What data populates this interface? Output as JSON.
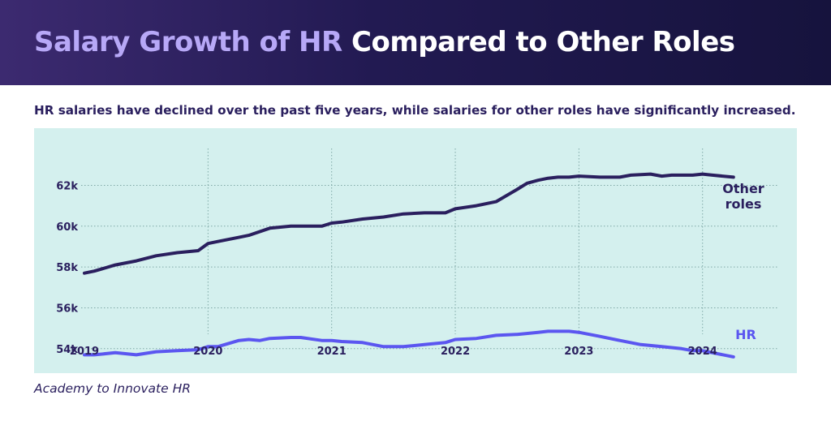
{
  "header": {
    "title_highlight": "Salary Growth of HR",
    "title_rest": " Compared to Other Roles",
    "subtitle": "HR salaries have declined over the past five years, while salaries for other roles have significantly increased."
  },
  "footer": {
    "source": "Academy to Innovate HR"
  },
  "colors": {
    "header_bg": "#221a52",
    "title_highlight": "#b7a8f7",
    "plot_bg": "#d4f0ee",
    "other_roles": "#2a1f5e",
    "hr": "#5b56f0"
  },
  "chart_data": {
    "type": "line",
    "title": "Salary Growth of HR Compared to Other Roles",
    "xlabel": "",
    "ylabel": "",
    "xlim": [
      2019.0,
      2024.33
    ],
    "ylim": [
      52800,
      64800
    ],
    "x_ticks": [
      2019,
      2020,
      2021,
      2022,
      2023,
      2024
    ],
    "x_tick_labels": [
      "2019",
      "2020",
      "2021",
      "2022",
      "2023",
      "2024"
    ],
    "y_ticks": [
      54000,
      56000,
      58000,
      60000,
      62000
    ],
    "y_tick_labels": [
      "54k",
      "56k",
      "58k",
      "60k",
      "62k"
    ],
    "grid": true,
    "series": [
      {
        "name": "Other roles",
        "label_lines": [
          "Other",
          "roles"
        ],
        "color": "#2a1f5e",
        "x": [
          2019.0,
          2019.08,
          2019.25,
          2019.42,
          2019.58,
          2019.75,
          2019.92,
          2020.0,
          2020.08,
          2020.25,
          2020.33,
          2020.5,
          2020.67,
          2020.75,
          2020.92,
          2021.0,
          2021.08,
          2021.25,
          2021.42,
          2021.58,
          2021.75,
          2021.92,
          2022.0,
          2022.17,
          2022.33,
          2022.5,
          2022.58,
          2022.67,
          2022.75,
          2022.83,
          2022.92,
          2023.0,
          2023.17,
          2023.33,
          2023.42,
          2023.58,
          2023.67,
          2023.75,
          2023.92,
          2024.0,
          2024.08,
          2024.25
        ],
        "values": [
          57700,
          57800,
          58100,
          58300,
          58550,
          58700,
          58800,
          59150,
          59250,
          59450,
          59550,
          59900,
          60000,
          60000,
          60000,
          60150,
          60200,
          60350,
          60450,
          60600,
          60650,
          60650,
          60850,
          61000,
          61200,
          61800,
          62100,
          62250,
          62350,
          62400,
          62400,
          62450,
          62400,
          62400,
          62500,
          62550,
          62450,
          62500,
          62500,
          62550,
          62500,
          62400
        ]
      },
      {
        "name": "HR",
        "label_lines": [
          "HR"
        ],
        "color": "#5b56f0",
        "x": [
          2019.0,
          2019.08,
          2019.25,
          2019.42,
          2019.58,
          2019.75,
          2019.92,
          2020.0,
          2020.08,
          2020.25,
          2020.33,
          2020.42,
          2020.5,
          2020.67,
          2020.75,
          2020.92,
          2021.0,
          2021.08,
          2021.25,
          2021.42,
          2021.58,
          2021.75,
          2021.92,
          2022.0,
          2022.17,
          2022.33,
          2022.5,
          2022.67,
          2022.75,
          2022.83,
          2022.92,
          2023.0,
          2023.17,
          2023.33,
          2023.5,
          2023.67,
          2023.83,
          2023.92,
          2024.0,
          2024.08,
          2024.25
        ],
        "values": [
          53700,
          53700,
          53800,
          53700,
          53850,
          53900,
          53950,
          54100,
          54100,
          54400,
          54450,
          54400,
          54500,
          54550,
          54550,
          54400,
          54400,
          54350,
          54300,
          54100,
          54100,
          54200,
          54300,
          54450,
          54500,
          54650,
          54700,
          54800,
          54850,
          54850,
          54850,
          54800,
          54600,
          54400,
          54200,
          54100,
          54000,
          53900,
          53900,
          53800,
          53600
        ]
      }
    ]
  }
}
